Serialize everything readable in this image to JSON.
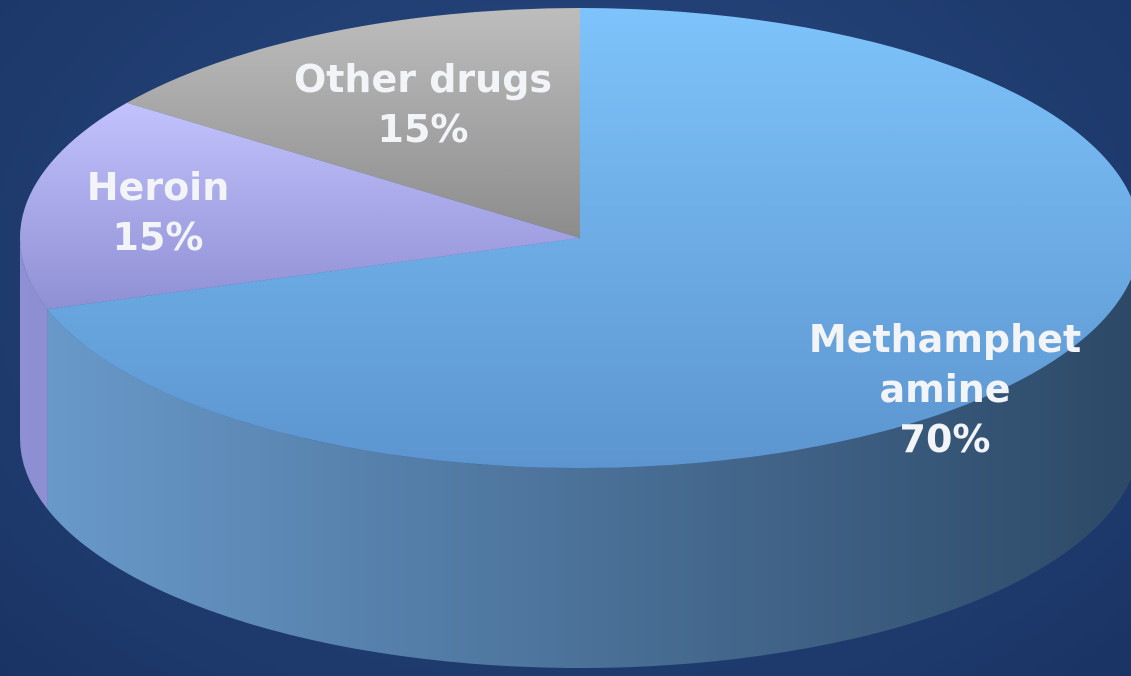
{
  "chart_data": {
    "type": "pie",
    "style": "3d",
    "start_angle_deg": -90,
    "direction": "clockwise",
    "slices": [
      {
        "label_lines": [
          "Methamphet",
          "amine"
        ],
        "value_label": "70%",
        "value": 70,
        "color_top": "#7ec3fb",
        "color_bottom": "#5c95cf",
        "color_side_light": "#6a9bcc",
        "color_side_dark": "#2c4866"
      },
      {
        "label_lines": [
          "Heroin"
        ],
        "value_label": "15%",
        "value": 15,
        "color_top": "#c2c2fd",
        "color_bottom": "#8f8fd4",
        "color_side_light": "#8f8fd4",
        "color_side_dark": "#5d5d99"
      },
      {
        "label_lines": [
          "Other drugs"
        ],
        "value_label": "15%",
        "value": 15,
        "color_top": "#bdbdbd",
        "color_bottom": "#8c8c8c",
        "color_side_light": "#9a9a9a",
        "color_side_dark": "#5a5a5a"
      }
    ]
  }
}
